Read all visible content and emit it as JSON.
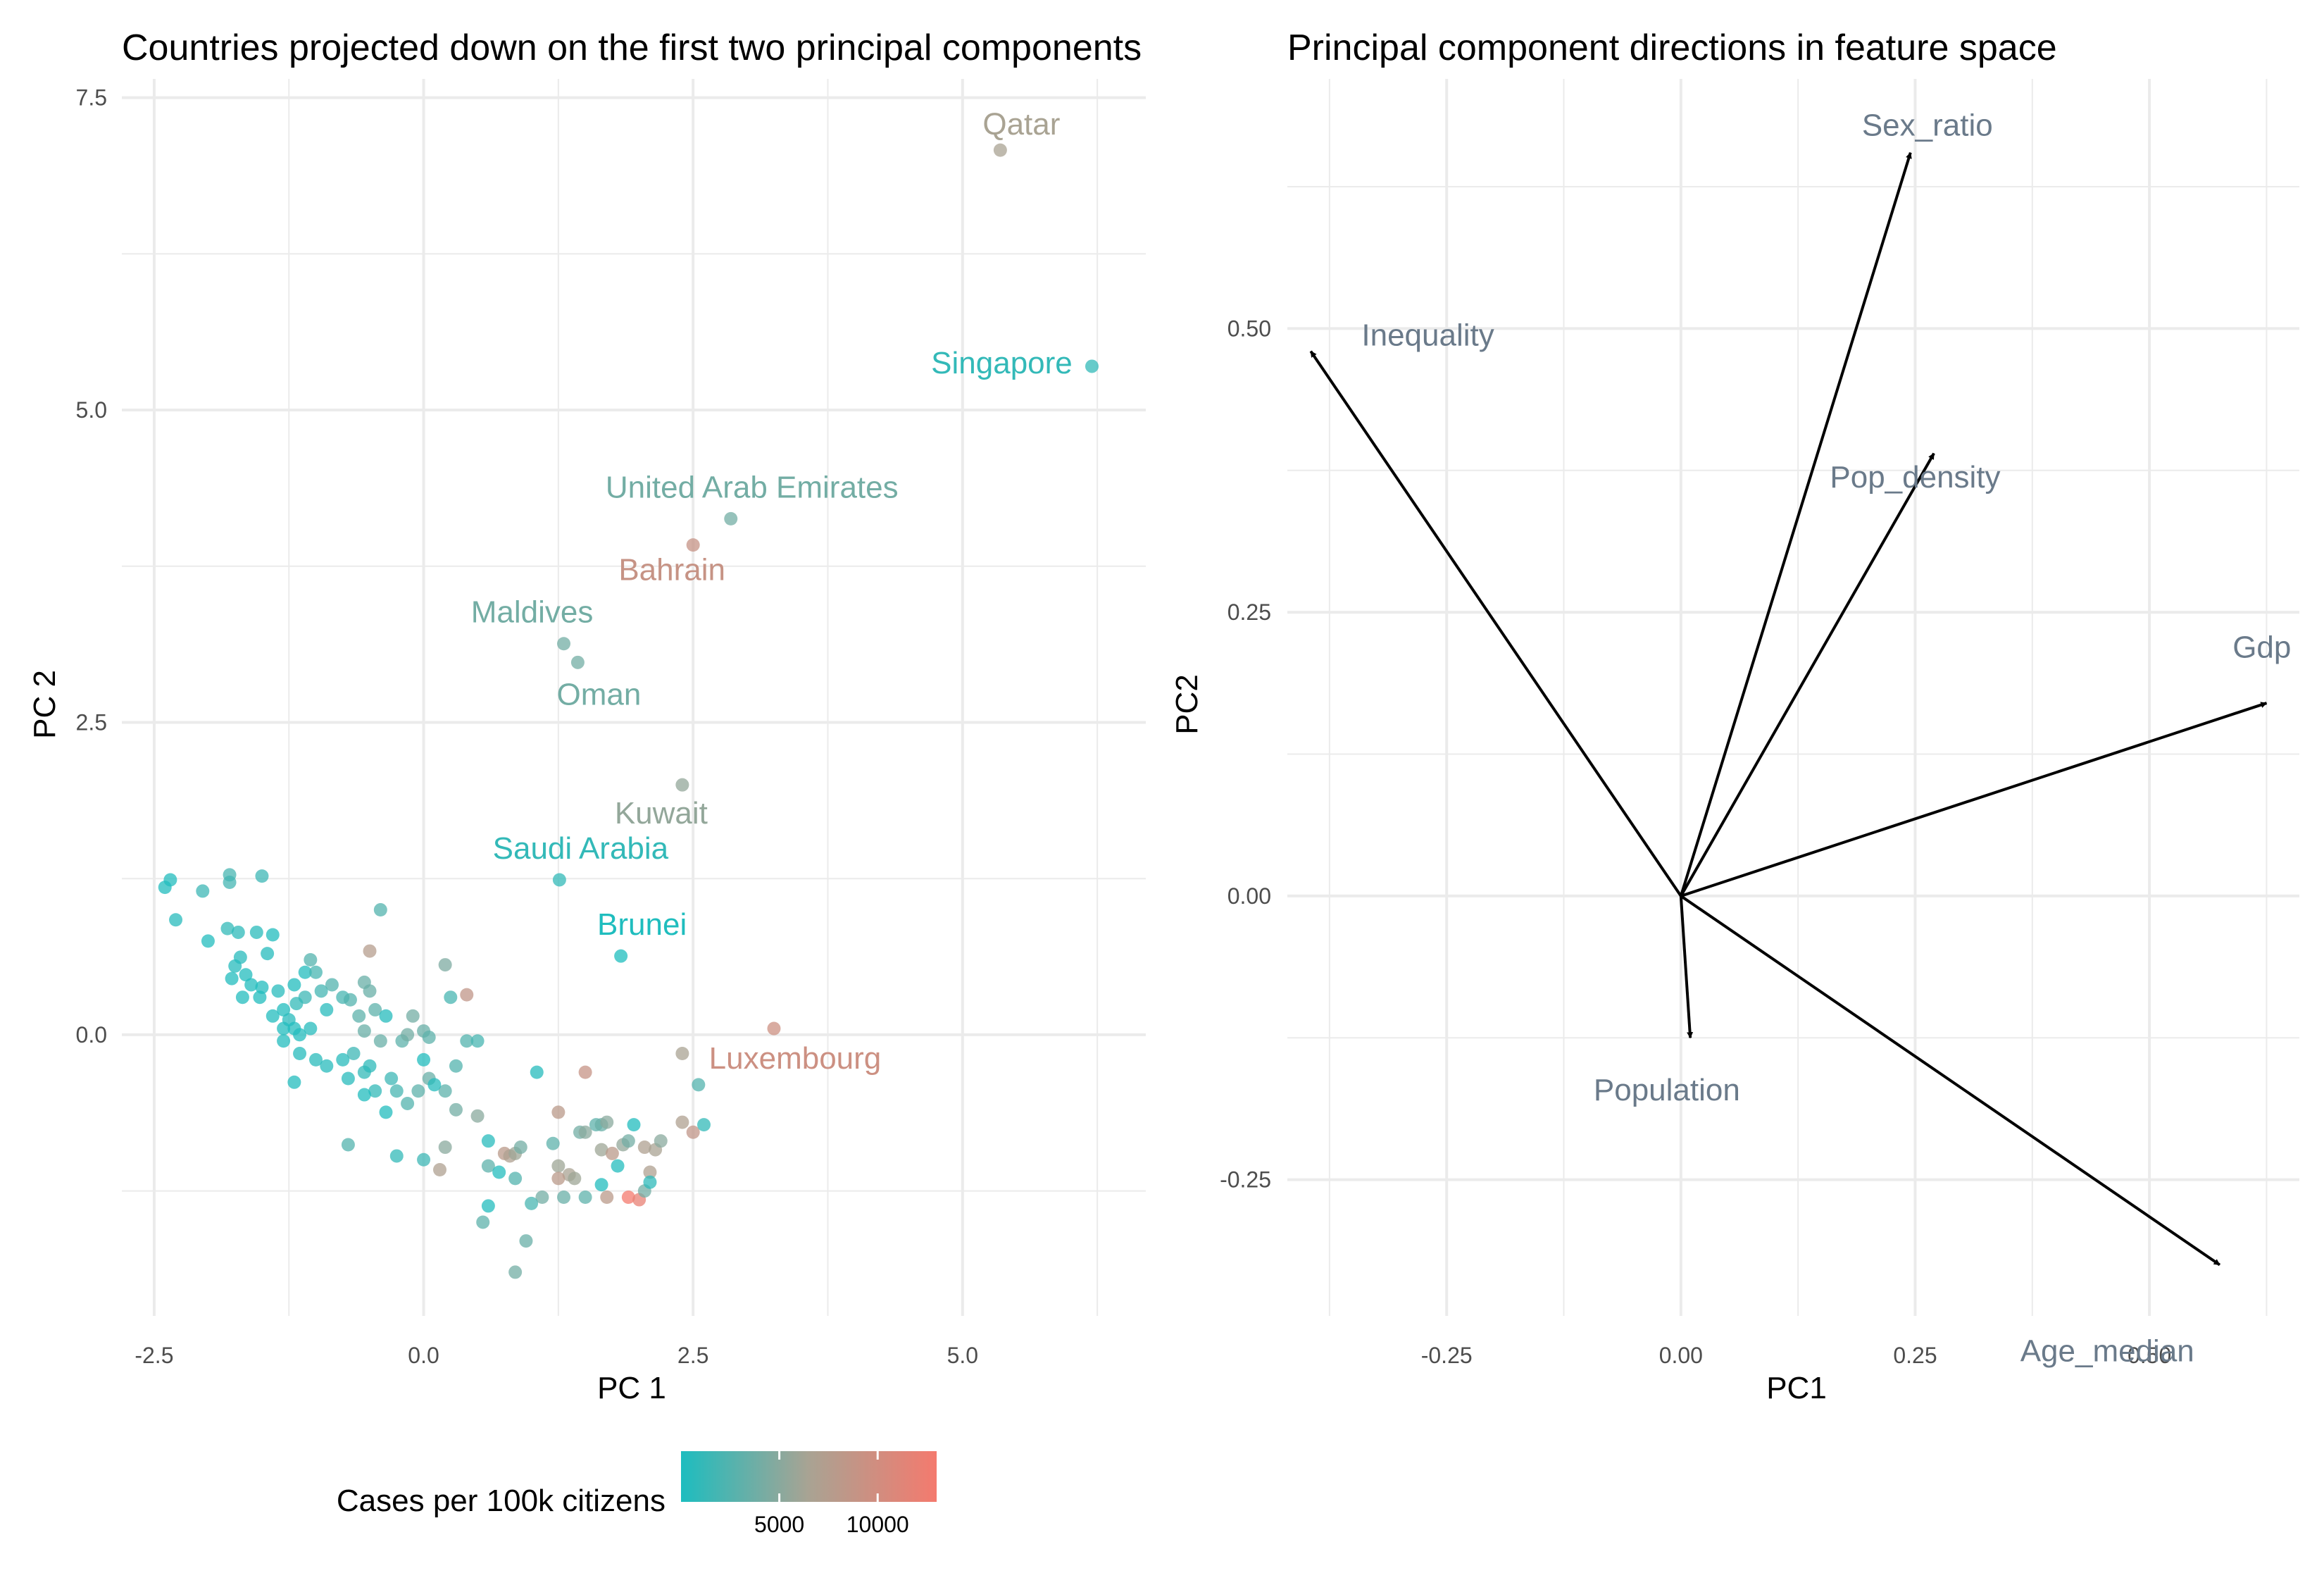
{
  "chart_data": [
    {
      "type": "scatter",
      "title": "Countries projected down on the first two principal components",
      "xlabel": "PC 1",
      "ylabel": "PC 2",
      "xlim": [
        -2.8,
        6.7
      ],
      "ylim": [
        -2.25,
        7.65
      ],
      "x_ticks": [
        -2.5,
        0.0,
        2.5,
        5.0
      ],
      "x_tick_labels": [
        "-2.5",
        "0.0",
        "2.5",
        "5.0"
      ],
      "y_ticks": [
        0.0,
        2.5,
        5.0,
        7.5
      ],
      "y_tick_labels": [
        "0.0",
        "2.5",
        "5.0",
        "7.5"
      ],
      "grid": true,
      "color_legend": {
        "title": "Cases per 100k citizens",
        "position": "bottom",
        "low_color": "#1dbdbf",
        "mid_color": "#a9a393",
        "high_color": "#f47a6e",
        "range": [
          0,
          13000
        ],
        "ticks": [
          5000,
          10000
        ],
        "tick_labels": [
          "5000",
          "10000"
        ]
      },
      "labeled_points": [
        {
          "label": "Qatar",
          "x": 5.35,
          "y": 7.08,
          "cases": 6500
        },
        {
          "label": "Singapore",
          "x": 6.2,
          "y": 5.35,
          "cases": 1000
        },
        {
          "label": "United Arab Emirates",
          "x": 2.85,
          "y": 4.13,
          "cases": 4000
        },
        {
          "label": "Bahrain",
          "x": 2.5,
          "y": 3.92,
          "cases": 9000
        },
        {
          "label": "Maldives",
          "x": 1.3,
          "y": 3.13,
          "cases": 4000
        },
        {
          "label": "Oman",
          "x": 1.43,
          "y": 2.98,
          "cases": 4000
        },
        {
          "label": "Kuwait",
          "x": 2.4,
          "y": 2.0,
          "cases": 5500
        },
        {
          "label": "Saudi Arabia",
          "x": 1.26,
          "y": 1.24,
          "cases": 1000
        },
        {
          "label": "Brunei",
          "x": 1.83,
          "y": 0.63,
          "cases": 100
        },
        {
          "label": "Luxembourg",
          "x": 3.25,
          "y": 0.05,
          "cases": 9500
        }
      ],
      "points": [
        [
          -2.4,
          1.18,
          200
        ],
        [
          -2.35,
          1.24,
          300
        ],
        [
          -2.3,
          0.92,
          500
        ],
        [
          -2.05,
          1.15,
          1500
        ],
        [
          -2.0,
          0.75,
          300
        ],
        [
          -1.8,
          1.28,
          2000
        ],
        [
          -1.8,
          1.22,
          1800
        ],
        [
          -1.5,
          1.27,
          1500
        ],
        [
          -1.82,
          0.85,
          1000
        ],
        [
          -1.72,
          0.82,
          800
        ],
        [
          -1.7,
          0.62,
          500
        ],
        [
          -1.75,
          0.55,
          400
        ],
        [
          -1.55,
          0.82,
          600
        ],
        [
          -1.4,
          0.8,
          200
        ],
        [
          -1.45,
          0.65,
          400
        ],
        [
          -1.65,
          0.48,
          300
        ],
        [
          -1.78,
          0.45,
          200
        ],
        [
          -1.6,
          0.4,
          300
        ],
        [
          -1.5,
          0.38,
          200
        ],
        [
          -1.35,
          0.35,
          500
        ],
        [
          -1.68,
          0.3,
          300
        ],
        [
          -1.52,
          0.3,
          200
        ],
        [
          -1.3,
          0.2,
          200
        ],
        [
          -1.4,
          0.15,
          300
        ],
        [
          -1.2,
          0.4,
          200
        ],
        [
          -1.1,
          0.5,
          300
        ],
        [
          -1.05,
          0.6,
          2500
        ],
        [
          -1.0,
          0.5,
          2000
        ],
        [
          -0.95,
          0.35,
          1800
        ],
        [
          -1.1,
          0.3,
          1500
        ],
        [
          -1.18,
          0.25,
          1000
        ],
        [
          -1.25,
          0.12,
          500
        ],
        [
          -1.3,
          0.05,
          200
        ],
        [
          -1.2,
          0.05,
          200
        ],
        [
          -1.15,
          0.0,
          300
        ],
        [
          -1.05,
          0.05,
          400
        ],
        [
          -0.9,
          0.2,
          500
        ],
        [
          -0.85,
          0.4,
          2500
        ],
        [
          -0.75,
          0.3,
          2000
        ],
        [
          -0.68,
          0.28,
          2500
        ],
        [
          -0.6,
          0.15,
          3000
        ],
        [
          -0.55,
          0.42,
          3500
        ],
        [
          -0.5,
          0.35,
          3500
        ],
        [
          -0.5,
          0.67,
          7500
        ],
        [
          -0.4,
          1.0,
          2500
        ],
        [
          -0.55,
          0.03,
          3500
        ],
        [
          -0.45,
          0.2,
          3000
        ],
        [
          -0.35,
          0.15,
          400
        ],
        [
          -0.4,
          -0.05,
          3500
        ],
        [
          -0.2,
          -0.05,
          3000
        ],
        [
          -0.1,
          0.15,
          4000
        ],
        [
          -0.15,
          0.0,
          4000
        ],
        [
          0.0,
          0.03,
          3500
        ],
        [
          0.05,
          -0.02,
          3000
        ],
        [
          0.2,
          0.56,
          4500
        ],
        [
          0.25,
          0.3,
          2000
        ],
        [
          0.4,
          0.32,
          8500
        ],
        [
          0.4,
          -0.05,
          2500
        ],
        [
          0.5,
          -0.05,
          2000
        ],
        [
          -1.3,
          -0.05,
          300
        ],
        [
          -1.15,
          -0.15,
          400
        ],
        [
          -1.2,
          -0.38,
          300
        ],
        [
          -1.0,
          -0.2,
          600
        ],
        [
          -0.9,
          -0.25,
          500
        ],
        [
          -0.75,
          -0.2,
          500
        ],
        [
          -0.65,
          -0.15,
          1500
        ],
        [
          -0.55,
          -0.3,
          1000
        ],
        [
          -0.5,
          -0.25,
          800
        ],
        [
          -0.7,
          -0.35,
          500
        ],
        [
          -0.45,
          -0.45,
          1000
        ],
        [
          -0.3,
          -0.35,
          1500
        ],
        [
          -0.25,
          -0.45,
          2000
        ],
        [
          -0.15,
          -0.55,
          2500
        ],
        [
          -0.05,
          -0.45,
          3000
        ],
        [
          0.05,
          -0.35,
          3500
        ],
        [
          0.2,
          -0.45,
          3000
        ],
        [
          0.3,
          -0.25,
          2500
        ],
        [
          0.3,
          -0.6,
          4000
        ],
        [
          0.5,
          -0.65,
          5000
        ],
        [
          -0.55,
          -0.48,
          200
        ],
        [
          -0.35,
          -0.62,
          300
        ],
        [
          0.0,
          -0.2,
          200
        ],
        [
          0.1,
          -0.4,
          400
        ],
        [
          -0.7,
          -0.88,
          2500
        ],
        [
          -0.25,
          -0.97,
          1000
        ],
        [
          0.0,
          -1.0,
          1500
        ],
        [
          0.15,
          -1.08,
          7000
        ],
        [
          0.2,
          -0.9,
          5000
        ],
        [
          0.6,
          -0.85,
          500
        ],
        [
          0.6,
          -1.05,
          3000
        ],
        [
          0.75,
          -0.95,
          8000
        ],
        [
          0.8,
          -0.97,
          7000
        ],
        [
          0.85,
          -0.95,
          6000
        ],
        [
          0.9,
          -0.9,
          4000
        ],
        [
          0.7,
          -1.1,
          300
        ],
        [
          0.85,
          -1.15,
          2500
        ],
        [
          0.6,
          -1.37,
          300
        ],
        [
          0.55,
          -1.5,
          3000
        ],
        [
          0.95,
          -1.65,
          3500
        ],
        [
          0.85,
          -1.9,
          4000
        ],
        [
          1.2,
          -0.87,
          3000
        ],
        [
          1.25,
          -1.05,
          6000
        ],
        [
          1.35,
          -1.12,
          6500
        ],
        [
          1.25,
          -1.15,
          8000
        ],
        [
          1.4,
          -1.15,
          6000
        ],
        [
          1.1,
          -1.3,
          4000
        ],
        [
          1.3,
          -1.3,
          3500
        ],
        [
          1.0,
          -1.35,
          2000
        ],
        [
          1.05,
          -0.3,
          400
        ],
        [
          1.25,
          -0.62,
          8000
        ],
        [
          1.45,
          -0.78,
          4000
        ],
        [
          1.5,
          -0.78,
          5000
        ],
        [
          1.6,
          -0.72,
          3000
        ],
        [
          1.65,
          -0.72,
          3500
        ],
        [
          1.7,
          -0.7,
          5000
        ],
        [
          1.5,
          -0.3,
          9000
        ],
        [
          1.65,
          -0.92,
          6000
        ],
        [
          1.75,
          -0.95,
          8000
        ],
        [
          1.85,
          -0.88,
          5500
        ],
        [
          1.9,
          -0.85,
          4000
        ],
        [
          1.95,
          -0.72,
          200
        ],
        [
          2.05,
          -0.9,
          7000
        ],
        [
          2.15,
          -0.92,
          6500
        ],
        [
          2.2,
          -0.85,
          5000
        ],
        [
          2.4,
          -0.7,
          7000
        ],
        [
          2.5,
          -0.78,
          8500
        ],
        [
          2.55,
          -0.4,
          2500
        ],
        [
          2.6,
          -0.72,
          1000
        ],
        [
          2.4,
          -0.15,
          6500
        ],
        [
          2.1,
          -1.1,
          7000
        ],
        [
          1.9,
          -1.3,
          13000
        ],
        [
          2.0,
          -1.32,
          12000
        ],
        [
          2.05,
          -1.25,
          4000
        ],
        [
          1.7,
          -1.3,
          8000
        ],
        [
          1.5,
          -1.3,
          3000
        ],
        [
          1.65,
          -1.2,
          200
        ],
        [
          1.8,
          -1.05,
          300
        ],
        [
          2.1,
          -1.18,
          800
        ]
      ]
    },
    {
      "type": "vector",
      "title": "Principal component directions in feature space",
      "xlabel": "PC1",
      "ylabel": "PC2",
      "xlim": [
        -0.42,
        0.66
      ],
      "ylim": [
        -0.37,
        0.72
      ],
      "x_ticks": [
        -0.25,
        0.0,
        0.25,
        0.5
      ],
      "x_tick_labels": [
        "-0.25",
        "0.00",
        "0.25",
        "0.50"
      ],
      "y_ticks": [
        -0.25,
        0.0,
        0.25,
        0.5
      ],
      "y_tick_labels": [
        "-0.25",
        "0.00",
        "0.25",
        "0.50"
      ],
      "grid": true,
      "vectors": [
        {
          "label": "Sex_ratio",
          "x": 0.245,
          "y": 0.655
        },
        {
          "label": "Inequality",
          "x": -0.395,
          "y": 0.48
        },
        {
          "label": "Pop_density",
          "x": 0.27,
          "y": 0.39
        },
        {
          "label": "Gdp",
          "x": 0.625,
          "y": 0.17
        },
        {
          "label": "Population",
          "x": 0.01,
          "y": -0.125
        },
        {
          "label": "Age_median",
          "x": 0.575,
          "y": -0.325
        }
      ]
    }
  ]
}
